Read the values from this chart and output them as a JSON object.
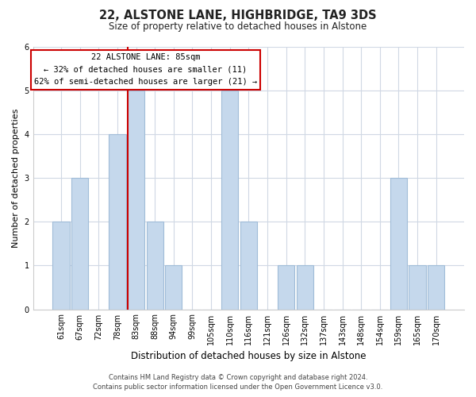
{
  "title": "22, ALSTONE LANE, HIGHBRIDGE, TA9 3DS",
  "subtitle": "Size of property relative to detached houses in Alstone",
  "xlabel": "Distribution of detached houses by size in Alstone",
  "ylabel": "Number of detached properties",
  "categories": [
    "61sqm",
    "67sqm",
    "72sqm",
    "78sqm",
    "83sqm",
    "88sqm",
    "94sqm",
    "99sqm",
    "105sqm",
    "110sqm",
    "116sqm",
    "121sqm",
    "126sqm",
    "132sqm",
    "137sqm",
    "143sqm",
    "148sqm",
    "154sqm",
    "159sqm",
    "165sqm",
    "170sqm"
  ],
  "values": [
    2,
    3,
    0,
    4,
    5,
    2,
    1,
    0,
    0,
    5,
    2,
    0,
    1,
    1,
    0,
    0,
    0,
    0,
    3,
    1,
    1
  ],
  "bar_color": "#c5d8ec",
  "bar_edgecolor": "#a0bcd8",
  "marker_line_color": "#cc0000",
  "marker_index": 4,
  "ylim": [
    0,
    6
  ],
  "yticks": [
    0,
    1,
    2,
    3,
    4,
    5,
    6
  ],
  "annotation_title": "22 ALSTONE LANE: 85sqm",
  "annotation_line1": "← 32% of detached houses are smaller (11)",
  "annotation_line2": "62% of semi-detached houses are larger (21) →",
  "annotation_box_color": "#ffffff",
  "annotation_box_edgecolor": "#cc0000",
  "footer_line1": "Contains HM Land Registry data © Crown copyright and database right 2024.",
  "footer_line2": "Contains public sector information licensed under the Open Government Licence v3.0.",
  "grid_color": "#d0d8e4",
  "fig_background": "#ffffff"
}
